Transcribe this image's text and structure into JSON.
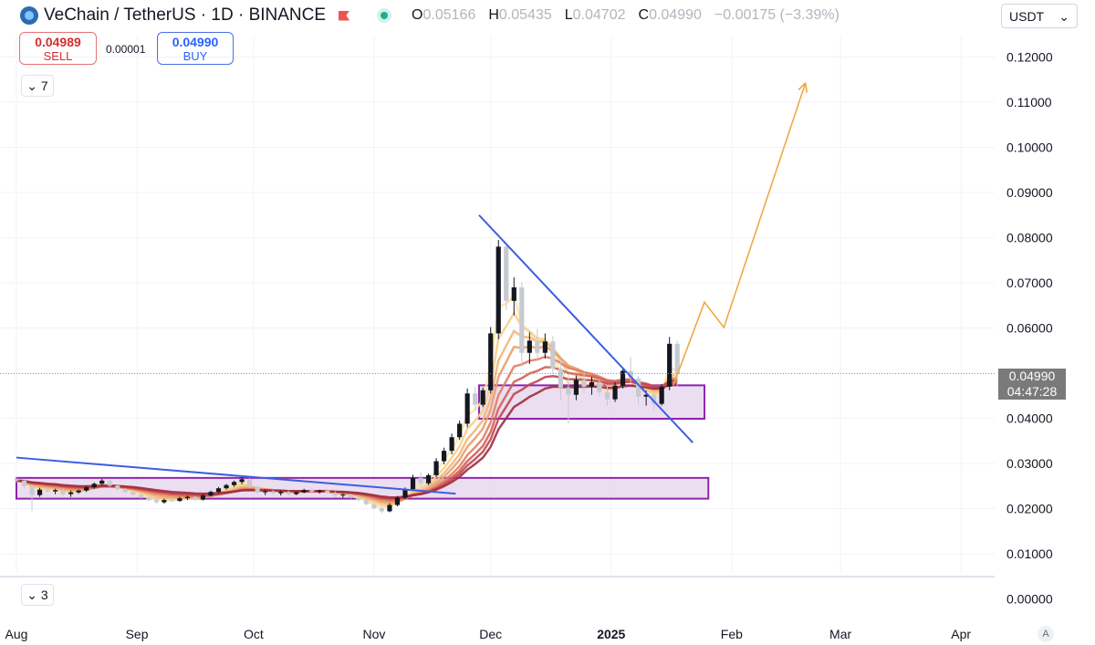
{
  "header": {
    "symbol": "VeChain / TetherUS · 1D · BINANCE",
    "o_label": "O",
    "o_value": "0.05166",
    "h_label": "H",
    "h_value": "0.05435",
    "l_label": "L",
    "l_value": "0.04702",
    "c_label": "C",
    "c_value": "0.04990",
    "change": "−0.00175 (−3.39%)"
  },
  "trade": {
    "sell_price": "0.04989",
    "sell_label": "SELL",
    "spread": "0.00001",
    "buy_price": "0.04990",
    "buy_label": "BUY"
  },
  "indicators": {
    "collapse_top_label": "7",
    "collapse_bottom_label": "3"
  },
  "currency_select": {
    "value": "USDT"
  },
  "price_tags": {
    "last_price": "0.04990",
    "countdown": "04:47:28"
  },
  "auto_scale_label": "A",
  "colors": {
    "up": "#131722",
    "down": "#c7cad1",
    "trendline": "#3d5ee0",
    "zone_border": "#8e24aa",
    "zone_fill": "#e6d3ec",
    "projection": "#f0a846"
  },
  "chart_data": {
    "type": "candlestick",
    "y_ticks": [
      "0.12000",
      "0.11000",
      "0.10000",
      "0.09000",
      "0.08000",
      "0.07000",
      "0.06000",
      "0.05000",
      "0.04000",
      "0.03000",
      "0.02000",
      "0.01000",
      "0.00000"
    ],
    "x_ticks": [
      "Aug",
      "Sep",
      "Oct",
      "Nov",
      "Dec",
      "2025",
      "Feb",
      "Mar",
      "Apr"
    ],
    "ylim": [
      0,
      0.12
    ],
    "last_price": 0.0499,
    "trendlines": [
      {
        "from": [
          "2024-08-01",
          0.0313
        ],
        "to": [
          "2024-11-22",
          0.0233
        ]
      },
      {
        "from": [
          "2024-11-28",
          0.085
        ],
        "to": [
          "2025-01-22",
          0.0346
        ]
      }
    ],
    "zones": [
      {
        "from": "2024-08-01",
        "to": "2025-01-26",
        "low": 0.0222,
        "high": 0.0268
      },
      {
        "from": "2024-11-28",
        "to": "2025-01-25",
        "low": 0.0399,
        "high": 0.0473
      }
    ],
    "projection": [
      [
        "2025-01-17",
        0.0473
      ],
      [
        "2025-01-25",
        0.0657
      ],
      [
        "2025-01-30",
        0.0601
      ],
      [
        "2025-02-20",
        0.1143
      ]
    ],
    "ohlc": [
      [
        "2024-08-01",
        0.0265,
        0.0272,
        0.0258,
        0.0262
      ],
      [
        "2024-08-03",
        0.0262,
        0.0266,
        0.0245,
        0.025
      ],
      [
        "2024-08-05",
        0.025,
        0.0253,
        0.0195,
        0.023
      ],
      [
        "2024-08-07",
        0.023,
        0.0246,
        0.0226,
        0.0242
      ],
      [
        "2024-08-09",
        0.0242,
        0.0246,
        0.0235,
        0.0238
      ],
      [
        "2024-08-11",
        0.0238,
        0.0244,
        0.0232,
        0.0241
      ],
      [
        "2024-08-13",
        0.0241,
        0.0245,
        0.0228,
        0.0232
      ],
      [
        "2024-08-15",
        0.0232,
        0.024,
        0.0226,
        0.0236
      ],
      [
        "2024-08-17",
        0.0236,
        0.0242,
        0.0233,
        0.024
      ],
      [
        "2024-08-19",
        0.024,
        0.025,
        0.0237,
        0.0247
      ],
      [
        "2024-08-21",
        0.0247,
        0.0258,
        0.0244,
        0.0255
      ],
      [
        "2024-08-23",
        0.0255,
        0.0266,
        0.0252,
        0.0262
      ],
      [
        "2024-08-25",
        0.0262,
        0.0265,
        0.0248,
        0.0251
      ],
      [
        "2024-08-27",
        0.0251,
        0.0254,
        0.024,
        0.0243
      ],
      [
        "2024-08-29",
        0.0243,
        0.0246,
        0.0234,
        0.0237
      ],
      [
        "2024-08-31",
        0.0237,
        0.024,
        0.0228,
        0.0231
      ],
      [
        "2024-09-02",
        0.0231,
        0.0234,
        0.0222,
        0.0225
      ],
      [
        "2024-09-04",
        0.0225,
        0.0228,
        0.0216,
        0.0219
      ],
      [
        "2024-09-06",
        0.0219,
        0.0224,
        0.021,
        0.0214
      ],
      [
        "2024-09-08",
        0.0214,
        0.0222,
        0.0211,
        0.0219
      ],
      [
        "2024-09-10",
        0.0219,
        0.0224,
        0.0214,
        0.0217
      ],
      [
        "2024-09-12",
        0.0217,
        0.0226,
        0.0215,
        0.0223
      ],
      [
        "2024-09-14",
        0.0223,
        0.0229,
        0.0219,
        0.0226
      ],
      [
        "2024-09-16",
        0.0226,
        0.0228,
        0.0216,
        0.022
      ],
      [
        "2024-09-18",
        0.022,
        0.0232,
        0.0218,
        0.0229
      ],
      [
        "2024-09-20",
        0.0229,
        0.024,
        0.0227,
        0.0237
      ],
      [
        "2024-09-22",
        0.0237,
        0.0248,
        0.0234,
        0.0245
      ],
      [
        "2024-09-24",
        0.0245,
        0.0255,
        0.0242,
        0.0252
      ],
      [
        "2024-09-26",
        0.0252,
        0.0262,
        0.0248,
        0.0259
      ],
      [
        "2024-09-28",
        0.0259,
        0.027,
        0.0254,
        0.0265
      ],
      [
        "2024-09-30",
        0.0265,
        0.0268,
        0.0245,
        0.0248
      ],
      [
        "2024-10-02",
        0.0248,
        0.0251,
        0.0232,
        0.0236
      ],
      [
        "2024-10-04",
        0.0236,
        0.0242,
        0.023,
        0.0238
      ],
      [
        "2024-10-06",
        0.0238,
        0.0241,
        0.0231,
        0.0234
      ],
      [
        "2024-10-08",
        0.0234,
        0.024,
        0.0229,
        0.0237
      ],
      [
        "2024-10-10",
        0.0237,
        0.024,
        0.0229,
        0.0232
      ],
      [
        "2024-10-12",
        0.0232,
        0.0238,
        0.023,
        0.0236
      ],
      [
        "2024-10-14",
        0.0236,
        0.0244,
        0.0234,
        0.0241
      ],
      [
        "2024-10-16",
        0.0241,
        0.0244,
        0.0234,
        0.0237
      ],
      [
        "2024-10-18",
        0.0237,
        0.0242,
        0.0233,
        0.024
      ],
      [
        "2024-10-20",
        0.024,
        0.0243,
        0.0232,
        0.0235
      ],
      [
        "2024-10-22",
        0.0235,
        0.0238,
        0.0225,
        0.0229
      ],
      [
        "2024-10-24",
        0.0229,
        0.0234,
        0.0224,
        0.0231
      ],
      [
        "2024-10-26",
        0.0231,
        0.0233,
        0.0222,
        0.0225
      ],
      [
        "2024-10-28",
        0.0225,
        0.0228,
        0.0215,
        0.0219
      ],
      [
        "2024-10-30",
        0.0219,
        0.0222,
        0.0207,
        0.021
      ],
      [
        "2024-11-01",
        0.021,
        0.0214,
        0.0197,
        0.0201
      ],
      [
        "2024-11-03",
        0.0201,
        0.0205,
        0.019,
        0.0194
      ],
      [
        "2024-11-05",
        0.0194,
        0.0212,
        0.0192,
        0.0208
      ],
      [
        "2024-11-07",
        0.0208,
        0.0228,
        0.0205,
        0.0224
      ],
      [
        "2024-11-09",
        0.0224,
        0.0247,
        0.0221,
        0.0243
      ],
      [
        "2024-11-11",
        0.0243,
        0.0275,
        0.024,
        0.0268
      ],
      [
        "2024-11-13",
        0.0268,
        0.028,
        0.025,
        0.0256
      ],
      [
        "2024-11-15",
        0.0256,
        0.0278,
        0.0252,
        0.0274
      ],
      [
        "2024-11-17",
        0.0274,
        0.0312,
        0.027,
        0.0305
      ],
      [
        "2024-11-19",
        0.0305,
        0.0335,
        0.0298,
        0.0328
      ],
      [
        "2024-11-21",
        0.0328,
        0.0366,
        0.032,
        0.0358
      ],
      [
        "2024-11-23",
        0.0358,
        0.0395,
        0.0352,
        0.0388
      ],
      [
        "2024-11-25",
        0.0388,
        0.0466,
        0.038,
        0.0455
      ],
      [
        "2024-11-27",
        0.0455,
        0.047,
        0.0418,
        0.043
      ],
      [
        "2024-11-29",
        0.043,
        0.0468,
        0.0425,
        0.0462
      ],
      [
        "2024-12-01",
        0.0462,
        0.0602,
        0.0455,
        0.0588
      ],
      [
        "2024-12-03",
        0.0588,
        0.0795,
        0.0575,
        0.078
      ],
      [
        "2024-12-05",
        0.078,
        0.079,
        0.064,
        0.066
      ],
      [
        "2024-12-07",
        0.066,
        0.0712,
        0.0628,
        0.069
      ],
      [
        "2024-12-09",
        0.069,
        0.0702,
        0.0515,
        0.0545
      ],
      [
        "2024-12-11",
        0.0545,
        0.059,
        0.052,
        0.0572
      ],
      [
        "2024-12-13",
        0.0572,
        0.0598,
        0.053,
        0.0545
      ],
      [
        "2024-12-15",
        0.0545,
        0.0588,
        0.0532,
        0.057
      ],
      [
        "2024-12-17",
        0.057,
        0.0582,
        0.0498,
        0.051
      ],
      [
        "2024-12-19",
        0.051,
        0.0528,
        0.044,
        0.0468
      ],
      [
        "2024-12-21",
        0.0468,
        0.0498,
        0.0388,
        0.0452
      ],
      [
        "2024-12-23",
        0.0452,
        0.0495,
        0.044,
        0.0485
      ],
      [
        "2024-12-25",
        0.0485,
        0.0502,
        0.0455,
        0.047
      ],
      [
        "2024-12-27",
        0.047,
        0.0492,
        0.0452,
        0.048
      ],
      [
        "2024-12-29",
        0.048,
        0.0486,
        0.0448,
        0.0458
      ],
      [
        "2024-12-31",
        0.0458,
        0.047,
        0.0428,
        0.0442
      ],
      [
        "2025-01-02",
        0.0442,
        0.048,
        0.0436,
        0.0472
      ],
      [
        "2025-01-04",
        0.0472,
        0.0512,
        0.0466,
        0.0505
      ],
      [
        "2025-01-06",
        0.0505,
        0.0536,
        0.0478,
        0.0488
      ],
      [
        "2025-01-08",
        0.0488,
        0.0494,
        0.043,
        0.0448
      ],
      [
        "2025-01-10",
        0.0448,
        0.0462,
        0.0428,
        0.0452
      ],
      [
        "2025-01-12",
        0.0452,
        0.046,
        0.0418,
        0.0432
      ],
      [
        "2025-01-14",
        0.0432,
        0.0476,
        0.0428,
        0.047
      ],
      [
        "2025-01-16",
        0.047,
        0.058,
        0.0462,
        0.0565
      ],
      [
        "2025-01-18",
        0.0565,
        0.0572,
        0.047,
        0.0499
      ]
    ]
  }
}
